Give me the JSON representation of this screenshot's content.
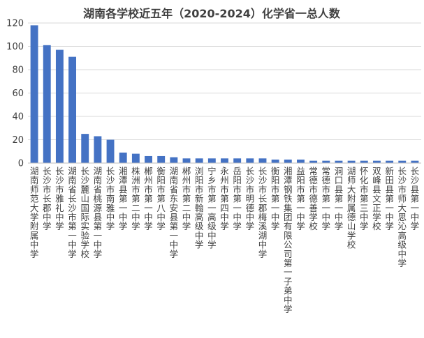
{
  "chart_data": {
    "type": "bar",
    "title": "湖南各学校近五年（2020-2024）化学省一总人数",
    "xlabel": "",
    "ylabel": "",
    "ylim": [
      0,
      120
    ],
    "yticks": [
      0,
      20,
      40,
      60,
      80,
      100,
      120
    ],
    "grid": true,
    "legend": "none",
    "bar_color": "#4472c4",
    "categories": [
      "湖南师范大学附属中学",
      "长沙市长郡中学",
      "长沙市雅礼中学",
      "湖南省长沙市第一中学",
      "长沙麓山国际实验学校",
      "湖南省桃源县第一中学",
      "长沙市南雅中学",
      "湘潭县第一中学",
      "株洲市第二中学",
      "郴州市第一中学",
      "衡阳市第八中学",
      "湖南省东安县第一中学",
      "郴州市第二中学",
      "浏阳市新翰高级中学",
      "宁乡市第一高级中学",
      "永州市第四中学",
      "岳阳市第一中学",
      "长沙市明德中学",
      "长沙市长郡梅溪湖中学",
      "衡阳市第一中学",
      "湘潭钢铁集团有限公司第一子弟中学",
      "益阳市第一中学",
      "常德市德善学校",
      "常德市第一中学",
      "洞口县第一中学",
      "湖师大附属德山学校",
      "怀化市第三中学",
      "双峰县文正学校",
      "新田县第一中学",
      "长沙市师大思沁高级中学",
      "长沙县第一中学"
    ],
    "values": [
      118,
      101,
      97,
      91,
      25,
      23,
      20,
      9,
      8,
      6,
      6,
      5,
      4,
      4,
      4,
      4,
      4,
      4,
      4,
      3,
      3,
      3,
      2,
      2,
      2,
      2,
      2,
      2,
      2,
      2,
      2
    ]
  }
}
